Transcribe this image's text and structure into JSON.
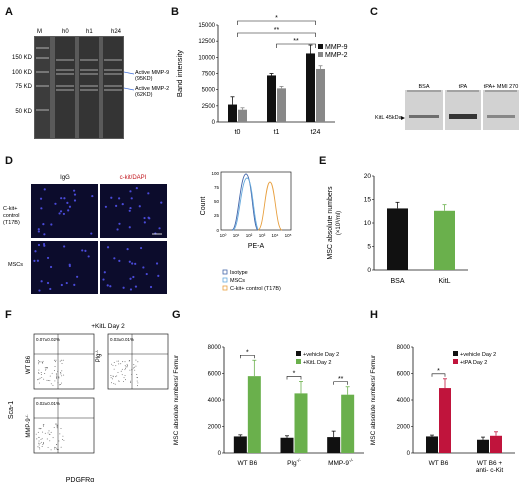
{
  "panels": {
    "A": {
      "letter": "A",
      "lanes": [
        "M",
        "h0",
        "h1",
        "h24"
      ],
      "markers": [
        "150 KD",
        "100 KD",
        "75 KD",
        "50 KD"
      ],
      "annot_mmp9": [
        "Active MMP-9",
        "(95KD)"
      ],
      "annot_mmp2": [
        "Active MMP-2",
        "(62KD)"
      ]
    },
    "B": {
      "letter": "B",
      "sig": [
        "*",
        "**",
        "**"
      ]
    },
    "C": {
      "letter": "C",
      "lanes": [
        "BSA",
        "tPA",
        "tPA+ MMI 270"
      ],
      "band_label": "KitL 45kDa"
    },
    "D": {
      "letter": "D",
      "col_labels": [
        "IgG",
        "c-kit/DAPI"
      ],
      "row_labels": [
        [
          "C-kit+",
          "control",
          "(T17B)"
        ],
        [
          "MSCs"
        ]
      ],
      "flow_ylabel": "Count",
      "flow_xlabel": "PE-A",
      "flow_xticks": [
        "10⁰",
        "10¹",
        "10²",
        "10³",
        "10⁴",
        "10⁵"
      ],
      "flow_yticks": [
        "0",
        "25",
        "50",
        "75",
        "100"
      ],
      "legend": [
        {
          "label": "Isotype",
          "color": "#4466aa"
        },
        {
          "label": "MSCs",
          "color": "#66aadd"
        },
        {
          "label": "C-kit+ control (T17B)",
          "color": "#e8a040"
        }
      ]
    },
    "E": {
      "letter": "E"
    },
    "F": {
      "letter": "F",
      "title": "+KitL Day 2",
      "ylabel": "Sca-1",
      "xlabel": "PDGFRα",
      "plots": [
        {
          "label": "WT B6",
          "pct": "0.07±0.02%"
        },
        {
          "label": "Plg",
          "sup": "-/-",
          "pct": "0.03±0.01%"
        },
        {
          "label": "MMP-9",
          "sup": "-/-",
          "pct": "0.02±0.01%"
        }
      ]
    },
    "G": {
      "letter": "G",
      "sig": [
        "*",
        "*",
        "**"
      ]
    },
    "H": {
      "letter": "H",
      "sig": [
        "*"
      ]
    }
  },
  "chart_data": [
    {
      "panel": "B",
      "type": "bar",
      "categories": [
        "t0",
        "t1",
        "t24"
      ],
      "ylabel": "Band intensity",
      "ylim": [
        0,
        15000
      ],
      "yticks": [
        0,
        2500,
        5000,
        7500,
        10000,
        12500,
        15000
      ],
      "series": [
        {
          "name": "MMP-9",
          "color": "#111111",
          "values": [
            2700,
            7200,
            10600
          ],
          "errors": [
            1200,
            300,
            1300
          ]
        },
        {
          "name": "MMP-2",
          "color": "#888888",
          "values": [
            1900,
            5200,
            8200
          ],
          "errors": [
            300,
            300,
            500
          ]
        }
      ],
      "legend": "top-right"
    },
    {
      "panel": "E",
      "type": "bar",
      "categories": [
        "BSA",
        "KitL"
      ],
      "ylabel": "MSC absolute numbers",
      "ylabel_unit": "(×10³/ml)",
      "ylim": [
        0,
        20
      ],
      "yticks": [
        0,
        5,
        10,
        15,
        20
      ],
      "series": [
        {
          "name": "",
          "colors": [
            "#111111",
            "#6ab04c"
          ],
          "values": [
            13.1,
            12.6
          ],
          "errors": [
            1.3,
            1.3
          ]
        }
      ]
    },
    {
      "panel": "G",
      "type": "bar",
      "categories": [
        "WT B6",
        "Plg",
        "MMP-9"
      ],
      "category_sup": [
        "",
        "-/-",
        "-/-"
      ],
      "ylabel": "MSC absolute numbers/ Femur",
      "ylim": [
        0,
        8000
      ],
      "yticks": [
        0,
        2000,
        4000,
        6000,
        8000
      ],
      "series": [
        {
          "name": "+vehicle Day 2",
          "color": "#111111",
          "values": [
            1250,
            1150,
            1200
          ],
          "errors": [
            120,
            150,
            450
          ]
        },
        {
          "name": "+KitL Day 2",
          "color": "#6ab04c",
          "values": [
            5800,
            4500,
            4400
          ],
          "errors": [
            1200,
            900,
            600
          ]
        }
      ],
      "legend": "top-right"
    },
    {
      "panel": "H",
      "type": "bar",
      "categories": [
        "WT B6",
        "WT B6 + anti- c-Kit"
      ],
      "ylabel": "MSC absolute numbers/ Femur",
      "ylim": [
        0,
        8000
      ],
      "yticks": [
        0,
        2000,
        4000,
        6000,
        8000
      ],
      "series": [
        {
          "name": "+vehicle Day 2",
          "color": "#111111",
          "values": [
            1250,
            1000
          ],
          "errors": [
            100,
            200
          ]
        },
        {
          "name": "+tPA Day 2",
          "color": "#c0143c",
          "values": [
            4900,
            1300
          ],
          "errors": [
            700,
            300
          ]
        }
      ],
      "legend": "top-right"
    }
  ]
}
